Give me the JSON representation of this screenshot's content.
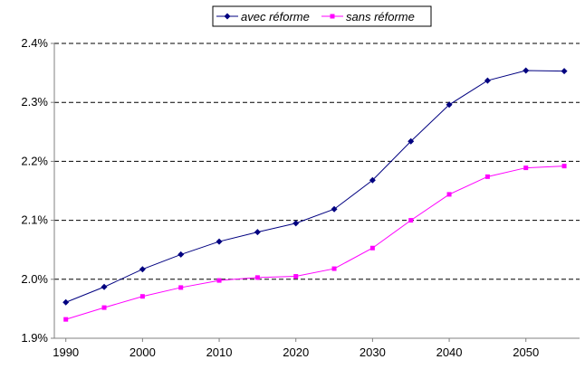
{
  "chart_data": {
    "type": "line",
    "title": "",
    "xlabel": "",
    "ylabel": "",
    "x": [
      1990,
      1995,
      2000,
      2005,
      2010,
      2015,
      2020,
      2025,
      2030,
      2035,
      2040,
      2045,
      2050,
      2055
    ],
    "x_ticks": [
      "1990",
      "2000",
      "2010",
      "2020",
      "2030",
      "2040",
      "2050"
    ],
    "x_tick_values": [
      1990,
      2000,
      2010,
      2020,
      2030,
      2040,
      2050
    ],
    "xlim": [
      1988.5,
      2057
    ],
    "ylim": [
      1.9,
      2.4
    ],
    "y_ticks": [
      "1.9%",
      "2.0%",
      "2.1%",
      "2.2%",
      "2.3%",
      "2.4%"
    ],
    "y_tick_values": [
      1.9,
      2.0,
      2.1,
      2.2,
      2.3,
      2.4
    ],
    "grid": "horizontal dashed",
    "legend_position": "top",
    "series": [
      {
        "name": "avec réforme",
        "color": "#000080",
        "marker": "diamond",
        "values": [
          1.961,
          1.987,
          2.017,
          2.042,
          2.064,
          2.08,
          2.095,
          2.119,
          2.168,
          2.234,
          2.296,
          2.337,
          2.354,
          2.353
        ]
      },
      {
        "name": "sans réforme",
        "color": "#FF00FF",
        "marker": "square",
        "values": [
          1.932,
          1.952,
          1.971,
          1.986,
          1.998,
          2.003,
          2.005,
          2.018,
          2.053,
          2.1,
          2.144,
          2.174,
          2.189,
          2.192
        ]
      }
    ]
  }
}
